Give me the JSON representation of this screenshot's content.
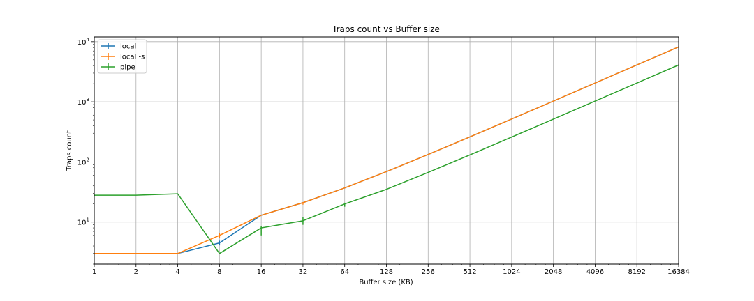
{
  "chart_data": {
    "type": "line",
    "title": "Traps count vs Buffer size",
    "xlabel": "Buffer size (KB)",
    "ylabel": "Traps count",
    "x_scale": "log2",
    "y_scale": "log10",
    "xlim": [
      1,
      16384
    ],
    "ylim": [
      2,
      12000
    ],
    "grid": true,
    "legend_position": "top-left",
    "x_ticks": [
      "1",
      "2",
      "4",
      "8",
      "16",
      "32",
      "64",
      "128",
      "256",
      "512",
      "1024",
      "2048",
      "4096",
      "8192",
      "16384"
    ],
    "y_ticks": [
      {
        "value": 10,
        "base": "10",
        "exp": "1"
      },
      {
        "value": 100,
        "base": "10",
        "exp": "2"
      },
      {
        "value": 1000,
        "base": "10",
        "exp": "3"
      },
      {
        "value": 10000,
        "base": "10",
        "exp": "4"
      }
    ],
    "x": [
      1,
      2,
      4,
      8,
      16,
      32,
      64,
      128,
      256,
      512,
      1024,
      2048,
      4096,
      8192,
      16384
    ],
    "series": [
      {
        "name": "local",
        "color": "#1f77b4",
        "values": [
          3,
          3,
          3,
          4.5,
          13,
          21,
          37,
          69,
          133,
          261,
          517,
          1029,
          2053,
          4101,
          8197
        ],
        "err_low": [
          0,
          0,
          0,
          0.4,
          0,
          0,
          0,
          0,
          0,
          0,
          0,
          0,
          0,
          0,
          0
        ],
        "err_high": [
          0,
          0,
          0,
          0.4,
          0,
          0,
          0,
          0,
          0,
          0,
          0,
          0,
          0,
          0,
          0
        ]
      },
      {
        "name": "local -s",
        "color": "#ff7f0e",
        "values": [
          3,
          3,
          3,
          6,
          13,
          21,
          37,
          69,
          133,
          261,
          517,
          1029,
          2053,
          4101,
          8197
        ],
        "err_low": [
          0,
          0,
          0,
          0.5,
          0,
          1.5,
          0,
          0,
          0,
          0,
          0,
          0,
          0,
          0,
          0
        ],
        "err_high": [
          0,
          0,
          0,
          0.5,
          0,
          0.5,
          0,
          0,
          0,
          0,
          0,
          0,
          0,
          0,
          0
        ]
      },
      {
        "name": "pipe",
        "color": "#2ca02c",
        "values": [
          28,
          28,
          29.5,
          3,
          8,
          10.5,
          20,
          35,
          67,
          131,
          259,
          515,
          1027,
          2051,
          4099
        ],
        "err_low": [
          0,
          0,
          0,
          0,
          2,
          1.5,
          2,
          0,
          0,
          0,
          0,
          0,
          0,
          0,
          0
        ],
        "err_high": [
          0,
          0,
          0,
          0,
          0.5,
          1.5,
          1,
          0,
          0,
          0,
          0,
          0,
          0,
          0,
          0
        ]
      }
    ]
  }
}
